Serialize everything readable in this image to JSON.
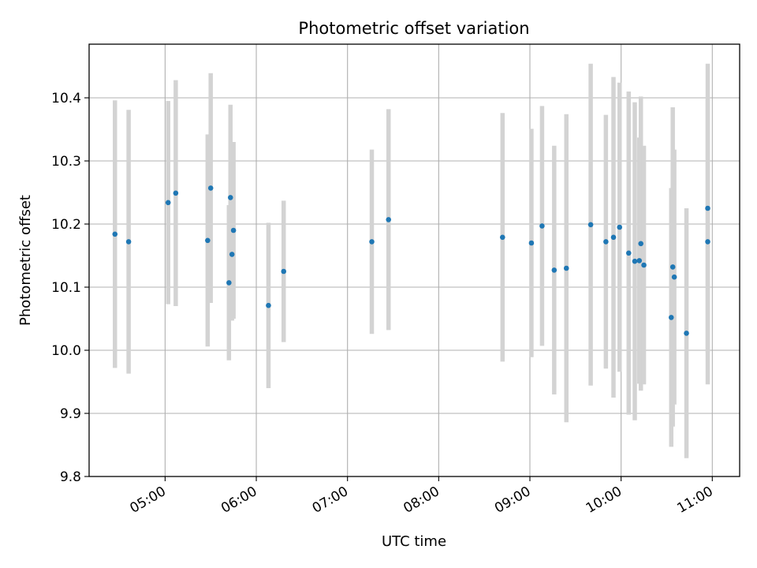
{
  "chart_data": {
    "type": "scatter",
    "title": "Photometric offset variation",
    "xlabel": "UTC time",
    "ylabel": "Photometric offset",
    "x_ticks": [
      "05:00",
      "06:00",
      "07:00",
      "08:00",
      "09:00",
      "10:00",
      "11:00"
    ],
    "y_ticks": [
      "9.8",
      "9.9",
      "10.0",
      "10.1",
      "10.2",
      "10.3",
      "10.4"
    ],
    "xlim": [
      "04:10",
      "11:18"
    ],
    "ylim": [
      9.8,
      10.485
    ],
    "grid": true,
    "colors": {
      "points": "#1f77b4",
      "errorbars": "#d3d3d3",
      "grid": "#b0b0b0"
    },
    "points": [
      {
        "x": "04:27",
        "y": 10.184,
        "err": 0.212
      },
      {
        "x": "04:36",
        "y": 10.172,
        "err": 0.209
      },
      {
        "x": "05:02",
        "y": 10.234,
        "err": 0.161
      },
      {
        "x": "05:07",
        "y": 10.249,
        "err": 0.179
      },
      {
        "x": "05:28",
        "y": 10.174,
        "err": 0.168
      },
      {
        "x": "05:30",
        "y": 10.257,
        "err": 0.182
      },
      {
        "x": "05:42",
        "y": 10.107,
        "err": 0.123
      },
      {
        "x": "05:43",
        "y": 10.242,
        "err": 0.147
      },
      {
        "x": "05:44",
        "y": 10.152,
        "err": 0.105
      },
      {
        "x": "05:45",
        "y": 10.19,
        "err": 0.14
      },
      {
        "x": "06:08",
        "y": 10.071,
        "err": 0.131
      },
      {
        "x": "06:18",
        "y": 10.125,
        "err": 0.112
      },
      {
        "x": "07:16",
        "y": 10.172,
        "err": 0.146
      },
      {
        "x": "07:27",
        "y": 10.207,
        "err": 0.175
      },
      {
        "x": "08:42",
        "y": 10.179,
        "err": 0.197
      },
      {
        "x": "09:01",
        "y": 10.17,
        "err": 0.181
      },
      {
        "x": "09:08",
        "y": 10.197,
        "err": 0.19
      },
      {
        "x": "09:16",
        "y": 10.127,
        "err": 0.197
      },
      {
        "x": "09:24",
        "y": 10.13,
        "err": 0.244
      },
      {
        "x": "09:40",
        "y": 10.199,
        "err": 0.255
      },
      {
        "x": "09:50",
        "y": 10.172,
        "err": 0.201
      },
      {
        "x": "09:55",
        "y": 10.179,
        "err": 0.254
      },
      {
        "x": "09:59",
        "y": 10.195,
        "err": 0.229
      },
      {
        "x": "10:05",
        "y": 10.154,
        "err": 0.256
      },
      {
        "x": "10:09",
        "y": 10.141,
        "err": 0.252
      },
      {
        "x": "10:12",
        "y": 10.142,
        "err": 0.195
      },
      {
        "x": "10:13",
        "y": 10.169,
        "err": 0.233
      },
      {
        "x": "10:15",
        "y": 10.135,
        "err": 0.189
      },
      {
        "x": "10:33",
        "y": 10.052,
        "err": 0.205
      },
      {
        "x": "10:34",
        "y": 10.132,
        "err": 0.253
      },
      {
        "x": "10:35",
        "y": 10.116,
        "err": 0.202
      },
      {
        "x": "10:43",
        "y": 10.027,
        "err": 0.198
      },
      {
        "x": "10:57",
        "y": 10.225,
        "err": 0.229
      },
      {
        "x": "10:57",
        "y": 10.172,
        "err": 0.226
      }
    ]
  }
}
